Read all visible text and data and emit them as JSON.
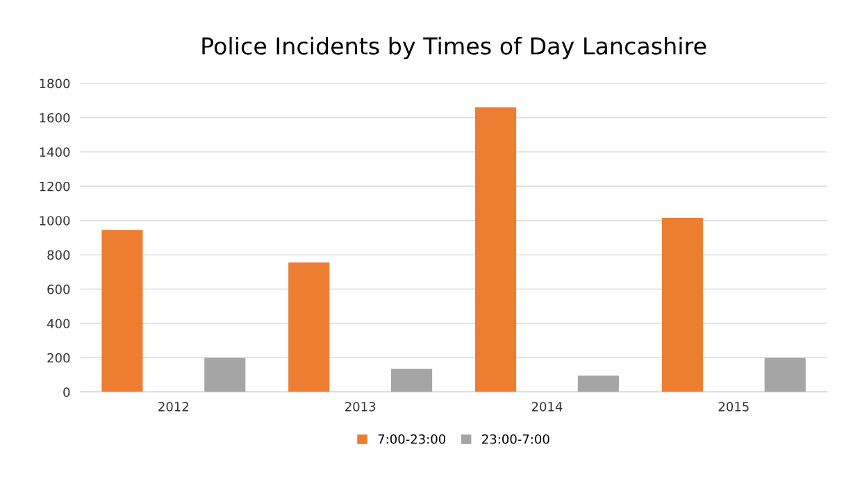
{
  "chart_data": {
    "type": "bar",
    "title": "Police Incidents by Times of Day Lancashire",
    "categories": [
      "2012",
      "2013",
      "2014",
      "2015"
    ],
    "series": [
      {
        "name": "7:00-23:00",
        "color": "#ed7d31",
        "values": [
          945,
          755,
          1660,
          1015
        ]
      },
      {
        "name": "23:00-7:00",
        "color": "#a5a5a5",
        "values": [
          200,
          135,
          95,
          200
        ]
      }
    ],
    "ylim": [
      0,
      1800
    ],
    "yticks": [
      0,
      200,
      400,
      600,
      800,
      1000,
      1200,
      1400,
      1600,
      1800
    ],
    "grid": "y",
    "legend": "bottom"
  }
}
